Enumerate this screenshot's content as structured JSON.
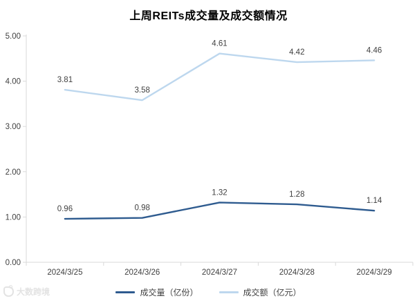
{
  "chart_data": {
    "type": "line",
    "title": "上周REITs成交量及成交额情况",
    "categories": [
      "2024/3/25",
      "2024/3/26",
      "2024/3/27",
      "2024/3/28",
      "2024/3/29"
    ],
    "series": [
      {
        "name": "成交量（亿份）",
        "values": [
          0.96,
          0.98,
          1.32,
          1.28,
          1.14
        ],
        "color": "#2E5B8F"
      },
      {
        "name": "成交额（亿元）",
        "values": [
          3.81,
          3.58,
          4.61,
          4.42,
          4.46
        ],
        "color": "#BDD7EE"
      }
    ],
    "ylim": [
      0,
      5
    ],
    "ytick_step": 1,
    "ytick_labels": [
      "0.00",
      "1.00",
      "2.00",
      "3.00",
      "4.00",
      "5.00"
    ],
    "grid": false,
    "legend_position": "bottom",
    "data_labels": true
  },
  "colors": {
    "axis": "#D9D9D9",
    "tick_label": "#404040",
    "data_label": "#404040",
    "title": "#000000",
    "watermark": "#e3e3e3"
  },
  "watermark": {
    "text": "大数跨境",
    "icon": "rounded-square-logo-icon"
  }
}
